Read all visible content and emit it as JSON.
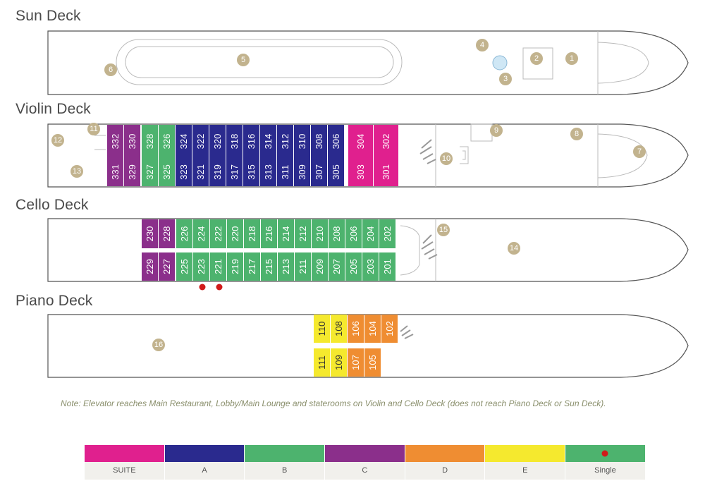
{
  "decks": {
    "sun": {
      "title": "Sun Deck"
    },
    "violin": {
      "title": "Violin Deck"
    },
    "cello": {
      "title": "Cello Deck"
    },
    "piano": {
      "title": "Piano Deck"
    }
  },
  "colors": {
    "SUITE": "#e0208e",
    "A": "#2a2a8e",
    "B": "#4db36e",
    "C": "#8b2f8b",
    "D": "#ef8d32",
    "E": "#f5e92e",
    "marker": "#c2b38e",
    "single_dot": "#d11a1a"
  },
  "cabins": [
    {
      "id": "332",
      "cat": "C"
    },
    {
      "id": "330",
      "cat": "C"
    },
    {
      "id": "328",
      "cat": "B"
    },
    {
      "id": "326",
      "cat": "B"
    },
    {
      "id": "324",
      "cat": "A"
    },
    {
      "id": "322",
      "cat": "A"
    },
    {
      "id": "320",
      "cat": "A"
    },
    {
      "id": "318",
      "cat": "A"
    },
    {
      "id": "316",
      "cat": "A"
    },
    {
      "id": "314",
      "cat": "A"
    },
    {
      "id": "312",
      "cat": "A"
    },
    {
      "id": "310",
      "cat": "A"
    },
    {
      "id": "308",
      "cat": "A"
    },
    {
      "id": "306",
      "cat": "A"
    },
    {
      "id": "304",
      "cat": "SUITE"
    },
    {
      "id": "302",
      "cat": "SUITE"
    },
    {
      "id": "331",
      "cat": "C"
    },
    {
      "id": "329",
      "cat": "C"
    },
    {
      "id": "327",
      "cat": "B"
    },
    {
      "id": "325",
      "cat": "B"
    },
    {
      "id": "323",
      "cat": "A"
    },
    {
      "id": "321",
      "cat": "A"
    },
    {
      "id": "319",
      "cat": "A"
    },
    {
      "id": "317",
      "cat": "A"
    },
    {
      "id": "315",
      "cat": "A"
    },
    {
      "id": "313",
      "cat": "A"
    },
    {
      "id": "311",
      "cat": "A"
    },
    {
      "id": "309",
      "cat": "A"
    },
    {
      "id": "307",
      "cat": "A"
    },
    {
      "id": "305",
      "cat": "A"
    },
    {
      "id": "303",
      "cat": "SUITE"
    },
    {
      "id": "301",
      "cat": "SUITE"
    },
    {
      "id": "230",
      "cat": "C"
    },
    {
      "id": "228",
      "cat": "C"
    },
    {
      "id": "226",
      "cat": "B"
    },
    {
      "id": "224",
      "cat": "B"
    },
    {
      "id": "222",
      "cat": "B"
    },
    {
      "id": "220",
      "cat": "B"
    },
    {
      "id": "218",
      "cat": "B"
    },
    {
      "id": "216",
      "cat": "B"
    },
    {
      "id": "214",
      "cat": "B"
    },
    {
      "id": "212",
      "cat": "B"
    },
    {
      "id": "210",
      "cat": "B"
    },
    {
      "id": "208",
      "cat": "B"
    },
    {
      "id": "206",
      "cat": "B"
    },
    {
      "id": "204",
      "cat": "B"
    },
    {
      "id": "202",
      "cat": "B"
    },
    {
      "id": "229",
      "cat": "C"
    },
    {
      "id": "227",
      "cat": "C"
    },
    {
      "id": "225",
      "cat": "B"
    },
    {
      "id": "223",
      "cat": "B"
    },
    {
      "id": "221",
      "cat": "B"
    },
    {
      "id": "219",
      "cat": "B"
    },
    {
      "id": "217",
      "cat": "B"
    },
    {
      "id": "215",
      "cat": "B"
    },
    {
      "id": "213",
      "cat": "B"
    },
    {
      "id": "211",
      "cat": "B"
    },
    {
      "id": "209",
      "cat": "B"
    },
    {
      "id": "207",
      "cat": "B"
    },
    {
      "id": "205",
      "cat": "B"
    },
    {
      "id": "203",
      "cat": "B"
    },
    {
      "id": "201",
      "cat": "B"
    },
    {
      "id": "110",
      "cat": "E"
    },
    {
      "id": "108",
      "cat": "E"
    },
    {
      "id": "106",
      "cat": "D"
    },
    {
      "id": "104",
      "cat": "D"
    },
    {
      "id": "102",
      "cat": "D"
    },
    {
      "id": "111",
      "cat": "E"
    },
    {
      "id": "109",
      "cat": "E"
    },
    {
      "id": "107",
      "cat": "D"
    },
    {
      "id": "105",
      "cat": "D"
    }
  ],
  "markers": [
    "1",
    "2",
    "3",
    "4",
    "5",
    "6",
    "7",
    "8",
    "9",
    "10",
    "11",
    "12",
    "13",
    "14",
    "15",
    "16"
  ],
  "note": "Note: Elevator reaches Main Restaurant, Lobby/Main Lounge and staterooms on Violin and Cello Deck (does not reach Piano Deck or Sun Deck).",
  "legend": [
    {
      "label": "SUITE",
      "color": "#e0208e"
    },
    {
      "label": "A",
      "color": "#2a2a8e"
    },
    {
      "label": "B",
      "color": "#4db36e"
    },
    {
      "label": "C",
      "color": "#8b2f8b"
    },
    {
      "label": "D",
      "color": "#ef8d32"
    },
    {
      "label": "E",
      "color": "#f5e92e"
    },
    {
      "label": "Single",
      "color": "#4db36e"
    }
  ]
}
